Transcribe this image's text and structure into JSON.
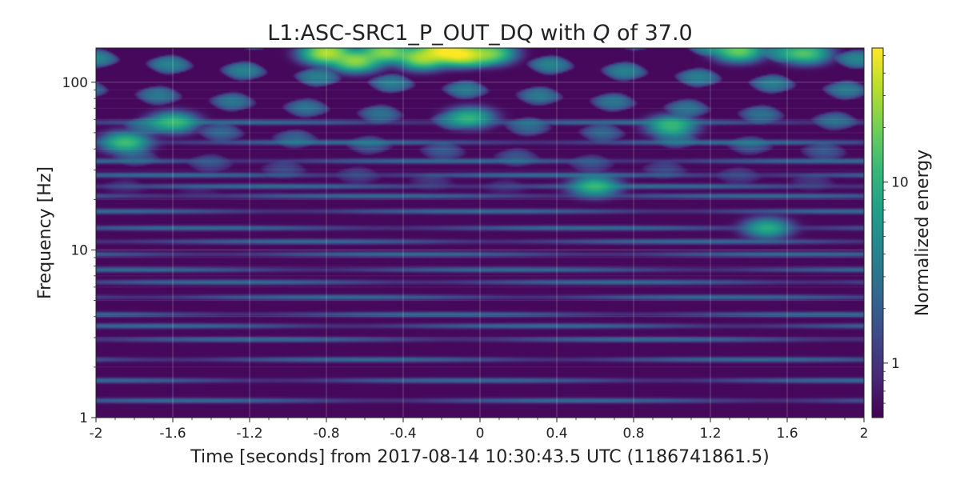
{
  "chart_data": {
    "type": "heatmap",
    "title": {
      "prefix": "L1:ASC-SRC1_P_OUT_DQ with ",
      "q_symbol": "Q",
      "suffix": " of 37.0"
    },
    "xlabel": "Time [seconds] from 2017-08-14 10:30:43.5 UTC (1186741861.5)",
    "ylabel": "Frequency [Hz]",
    "colorbar_label": "Normalized energy",
    "xlim": [
      -2,
      2
    ],
    "ylim": [
      1,
      160
    ],
    "yscale": "log",
    "x_ticks": [
      {
        "value": -2,
        "label": "-2"
      },
      {
        "value": -1.6,
        "label": "-1.6"
      },
      {
        "value": -1.2,
        "label": "-1.2"
      },
      {
        "value": -0.8,
        "label": "-0.8"
      },
      {
        "value": -0.4,
        "label": "-0.4"
      },
      {
        "value": 0,
        "label": "0"
      },
      {
        "value": 0.4,
        "label": "0.4"
      },
      {
        "value": 0.8,
        "label": "0.8"
      },
      {
        "value": 1.2,
        "label": "1.2"
      },
      {
        "value": 1.6,
        "label": "1.6"
      },
      {
        "value": 2,
        "label": "2"
      }
    ],
    "y_ticks": [
      {
        "value": 1,
        "label": "1"
      },
      {
        "value": 10,
        "label": "10"
      },
      {
        "value": 100,
        "label": "100"
      }
    ],
    "colorbar": {
      "scale": "log",
      "range": [
        0.5,
        55
      ],
      "ticks": [
        {
          "value": 1,
          "label": "1"
        },
        {
          "value": 10,
          "label": "10"
        }
      ],
      "colormap": "viridis",
      "colors": [
        "#440154",
        "#482878",
        "#3e4a89",
        "#31688e",
        "#26828e",
        "#1f9e89",
        "#35b779",
        "#6ece58",
        "#b5de2b",
        "#fde725"
      ]
    },
    "grid": true,
    "horizontal_bands_hz": [
      1.25,
      1.65,
      2.2,
      2.9,
      3.5,
      4.1,
      5.2,
      6.4,
      7.6,
      9.4,
      11.2,
      13.5,
      17,
      21,
      24,
      28,
      34,
      44,
      58
    ],
    "hotspots": [
      {
        "t": -0.8,
        "f": 150,
        "energy": 30
      },
      {
        "t": -0.65,
        "f": 135,
        "energy": 24
      },
      {
        "t": -0.5,
        "f": 152,
        "energy": 22
      },
      {
        "t": -0.3,
        "f": 140,
        "energy": 26
      },
      {
        "t": -0.2,
        "f": 155,
        "energy": 40
      },
      {
        "t": -0.1,
        "f": 148,
        "energy": 48
      },
      {
        "t": 0.05,
        "f": 150,
        "energy": 20
      },
      {
        "t": -1.85,
        "f": 44,
        "energy": 12
      },
      {
        "t": -1.6,
        "f": 58,
        "energy": 11
      },
      {
        "t": -0.05,
        "f": 62,
        "energy": 9
      },
      {
        "t": 0.6,
        "f": 24,
        "energy": 10
      },
      {
        "t": 1.0,
        "f": 55,
        "energy": 11
      },
      {
        "t": 1.35,
        "f": 155,
        "energy": 18
      },
      {
        "t": 1.7,
        "f": 150,
        "energy": 14
      },
      {
        "t": 1.5,
        "f": 13.5,
        "energy": 8
      }
    ]
  }
}
